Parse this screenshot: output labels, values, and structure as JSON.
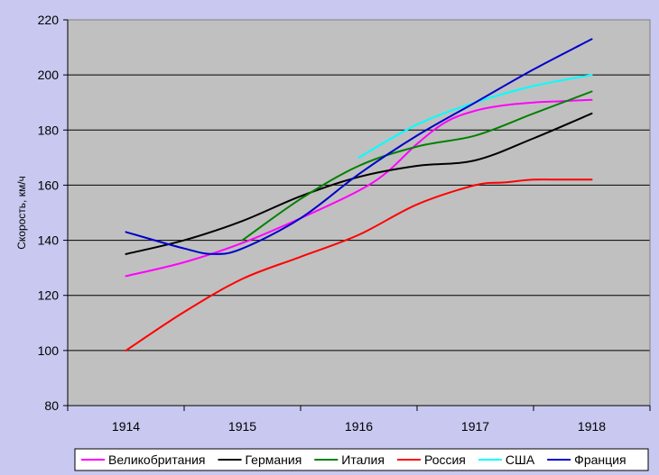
{
  "chart_data": {
    "type": "line",
    "title": "",
    "xlabel": "",
    "ylabel": "Скорость, км/ч",
    "categories": [
      "1914",
      "1915",
      "1916",
      "1917",
      "1918"
    ],
    "ylim": [
      80,
      220
    ],
    "yticks": [
      80,
      100,
      120,
      140,
      160,
      180,
      200,
      220
    ],
    "grid": "horizontal",
    "legend": "bottom",
    "series": [
      {
        "name": "Великобритания",
        "color": "#ff00ff",
        "x": [
          1914,
          1914.5,
          1915,
          1915.5,
          1916,
          1916.25,
          1916.5,
          1916.75,
          1917,
          1917.25,
          1917.5,
          1917.75,
          1918
        ],
        "y": [
          127,
          132,
          139,
          148,
          158,
          165,
          175,
          183,
          187,
          189,
          190,
          190.5,
          191
        ]
      },
      {
        "name": "Германия",
        "color": "#000000",
        "x": [
          1914,
          1914.5,
          1915,
          1915.5,
          1916,
          1916.5,
          1917,
          1917.5,
          1918
        ],
        "y": [
          135,
          140,
          147,
          156,
          163,
          167,
          169,
          177,
          186
        ]
      },
      {
        "name": "Италия",
        "color": "#008000",
        "x": [
          1915,
          1915.5,
          1916,
          1916.5,
          1917,
          1917.5,
          1918
        ],
        "y": [
          140,
          155,
          167,
          174,
          178,
          186,
          194
        ]
      },
      {
        "name": "Россия",
        "color": "#ff0000",
        "x": [
          1914,
          1914.5,
          1915,
          1915.5,
          1916,
          1916.5,
          1917,
          1917.25,
          1917.5,
          1917.75,
          1918
        ],
        "y": [
          100,
          114,
          126,
          134,
          142,
          153,
          160,
          161,
          162,
          162,
          162
        ]
      },
      {
        "name": "США",
        "color": "#00ffff",
        "x": [
          1916,
          1916.5,
          1917,
          1917.5,
          1918
        ],
        "y": [
          170,
          182,
          190,
          196,
          200
        ]
      },
      {
        "name": "Франция",
        "color": "#0000cc",
        "x": [
          1914,
          1914.5,
          1914.75,
          1915,
          1915.5,
          1916,
          1916.5,
          1917,
          1917.5,
          1918
        ],
        "y": [
          143,
          137,
          135,
          137,
          148,
          164,
          178,
          190,
          202,
          213
        ]
      }
    ]
  }
}
